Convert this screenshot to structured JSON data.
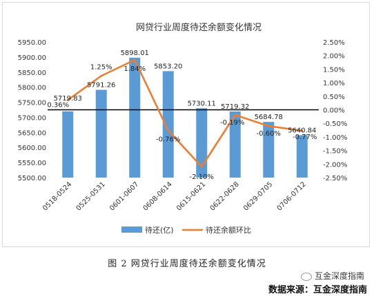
{
  "chart_data": {
    "type": "bar+line",
    "title": "网贷行业周度待还余额变化情况",
    "categories": [
      "0518-0524",
      "0525-0531",
      "0601-0607",
      "0608-0614",
      "0615-0621",
      "0622-0628",
      "0629-0705",
      "0706-0712"
    ],
    "series": [
      {
        "name": "待还(亿)",
        "type": "bar",
        "axis": "left",
        "values": [
          5719.83,
          5791.26,
          5898.01,
          5853.2,
          5730.11,
          5719.32,
          5684.78,
          5640.84
        ],
        "labels": [
          "5719.83",
          "5791.26",
          "5898.01",
          "5853.20",
          "5730.11",
          "5719.32",
          "5684.78",
          "5640.84"
        ]
      },
      {
        "name": "待还余额环比",
        "type": "line",
        "axis": "right",
        "values": [
          0.36,
          1.25,
          1.84,
          -0.76,
          -2.1,
          -0.19,
          -0.6,
          -0.77
        ],
        "labels": [
          "0.36%",
          "1.25%",
          "1.84%",
          "-0.76%",
          "-2.10%",
          "-0.19%",
          "-0.60%",
          "-0.77%"
        ]
      }
    ],
    "y_left": {
      "min": 5500,
      "max": 5950,
      "step": 50,
      "ticks": [
        "5500.00",
        "5550.00",
        "5600.00",
        "5650.00",
        "5700.00",
        "5750.00",
        "5800.00",
        "5850.00",
        "5900.00",
        "5950.00"
      ]
    },
    "y_right": {
      "min": -2.5,
      "max": 2.5,
      "step": 0.5,
      "ticks": [
        "-2.50%",
        "-2.00%",
        "-1.50%",
        "-1.00%",
        "-0.50%",
        "0.00%",
        "0.50%",
        "1.00%",
        "1.50%",
        "2.00%",
        "2.50%"
      ]
    },
    "legend_position": "bottom",
    "colors": {
      "bar": "#5b9bd5",
      "line": "#ed7d31",
      "zero_line": "#000000"
    }
  },
  "caption": "图 2  网贷行业周度待还余额变化情况",
  "watermark": "互金深度指南",
  "source": "数据来源：互金深度指南"
}
